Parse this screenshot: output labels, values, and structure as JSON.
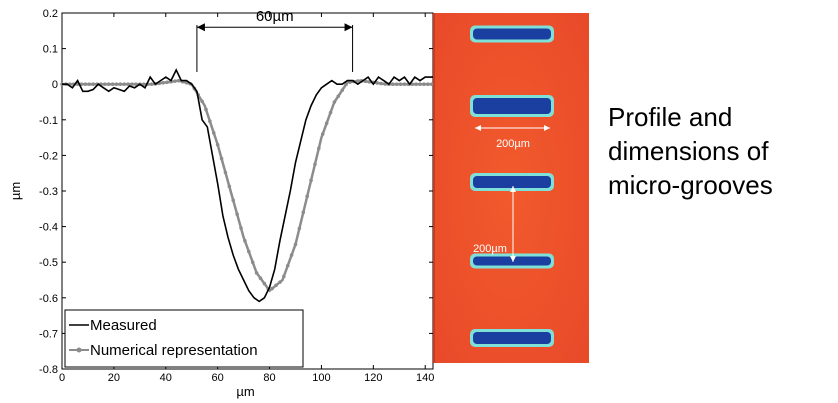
{
  "chart_data": {
    "type": "line",
    "xlabel": "µm",
    "ylabel": "µm",
    "xlim": [
      0,
      143
    ],
    "ylim": [
      -0.8,
      0.2
    ],
    "x_ticks": [
      0,
      20,
      40,
      60,
      80,
      100,
      120,
      140
    ],
    "x_tick_labels": [
      "0",
      "20",
      "40",
      "60",
      "80",
      "100",
      "120",
      "140"
    ],
    "y_ticks": [
      0.2,
      0.1,
      0,
      -0.1,
      -0.2,
      -0.3,
      -0.4,
      -0.5,
      -0.6,
      -0.7,
      -0.8
    ],
    "y_tick_labels": [
      "0.2",
      "0.1",
      "0",
      "-0.1",
      "-0.2",
      "-0.3",
      "-0.4",
      "-0.5",
      "-0.6",
      "-0.7",
      "-0.8"
    ],
    "grid": false,
    "legend_position": "bottom-left",
    "series": [
      {
        "name": "Measured",
        "color": "#000000",
        "x": [
          0,
          2,
          4,
          6,
          8,
          10,
          12,
          14,
          16,
          18,
          20,
          22,
          24,
          26,
          28,
          30,
          32,
          34,
          36,
          38,
          40,
          42,
          44,
          46,
          48,
          50,
          52,
          54,
          56,
          58,
          60,
          62,
          64,
          66,
          68,
          70,
          72,
          74,
          76,
          78,
          80,
          82,
          84,
          86,
          88,
          90,
          92,
          94,
          96,
          98,
          100,
          102,
          104,
          106,
          108,
          110,
          112,
          114,
          116,
          118,
          120,
          122,
          124,
          126,
          128,
          130,
          132,
          134,
          136,
          138,
          140,
          143
        ],
        "y": [
          0.0,
          0.0,
          -0.01,
          0.01,
          -0.02,
          -0.02,
          -0.015,
          0.0,
          -0.01,
          -0.02,
          -0.01,
          -0.015,
          -0.02,
          -0.005,
          -0.01,
          0.0,
          -0.01,
          0.02,
          0.0,
          0.01,
          0.02,
          0.01,
          0.04,
          0.01,
          0.01,
          0.0,
          -0.02,
          -0.1,
          -0.12,
          -0.2,
          -0.28,
          -0.37,
          -0.43,
          -0.48,
          -0.52,
          -0.55,
          -0.58,
          -0.6,
          -0.61,
          -0.6,
          -0.57,
          -0.52,
          -0.44,
          -0.37,
          -0.3,
          -0.22,
          -0.16,
          -0.1,
          -0.06,
          -0.03,
          -0.01,
          0.0,
          0.01,
          0.0,
          0.0,
          0.01,
          0.01,
          0.0,
          0.01,
          0.02,
          0.0,
          0.02,
          0.01,
          0.0,
          0.02,
          0.01,
          0.02,
          0.0,
          0.02,
          0.01,
          0.02,
          0.02
        ]
      },
      {
        "name": "Numerical representation",
        "color": "#8c8c8c",
        "x": [
          0,
          5,
          10,
          15,
          20,
          25,
          30,
          35,
          40,
          45,
          50,
          55,
          60,
          65,
          70,
          75,
          80,
          85,
          90,
          95,
          100,
          105,
          110,
          115,
          120,
          125,
          130,
          135,
          140,
          143
        ],
        "y": [
          0.0,
          0.0,
          0.0,
          0.0,
          0.0,
          0.0,
          0.0,
          0.0,
          0.005,
          0.01,
          0.0,
          -0.06,
          -0.17,
          -0.3,
          -0.43,
          -0.53,
          -0.58,
          -0.55,
          -0.45,
          -0.3,
          -0.15,
          -0.05,
          0.005,
          0.01,
          0.005,
          0.0,
          0.0,
          0.0,
          0.0,
          0.0
        ]
      }
    ],
    "annotations": [
      {
        "text": "60µm",
        "x_start": 52,
        "x_end": 112,
        "y": 0.16
      }
    ]
  },
  "image_annotations": {
    "width_label": "200µm",
    "spacing_label": "200µm"
  },
  "caption": {
    "lines": [
      "Profile and",
      "dimensions of",
      "micro-grooves"
    ]
  },
  "colors": {
    "surface": "#e84a2a",
    "groove": "#1a3fa0",
    "groove_edge": "#7fe0d8"
  }
}
